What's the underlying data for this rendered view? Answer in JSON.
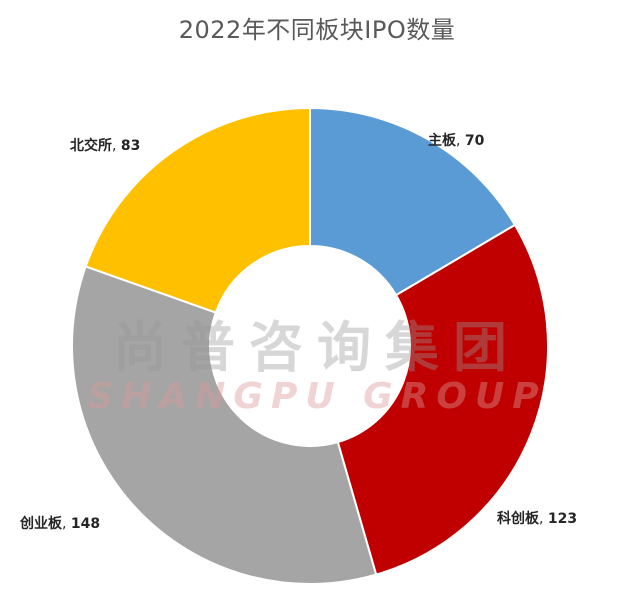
{
  "chart_data": {
    "type": "pie",
    "title": "2022年不同板块IPO数量",
    "donut": true,
    "categories": [
      "主板",
      "科创板",
      "创业板",
      "北交所"
    ],
    "values": [
      70,
      123,
      148,
      83
    ],
    "colors": [
      "#5B9BD5",
      "#C00000",
      "#A5A5A5",
      "#FFC000"
    ],
    "labels": [
      {
        "name": "主板",
        "sep": ", ",
        "value": "70"
      },
      {
        "name": "科创板",
        "sep": ", ",
        "value": "123"
      },
      {
        "name": "创业板",
        "sep": ", ",
        "value": "148"
      },
      {
        "name": "北交所",
        "sep": ", ",
        "value": "83"
      }
    ],
    "legend": "none"
  },
  "watermark": {
    "chinese": "尚普咨询集团",
    "english": "SHANGPU GROUP"
  }
}
